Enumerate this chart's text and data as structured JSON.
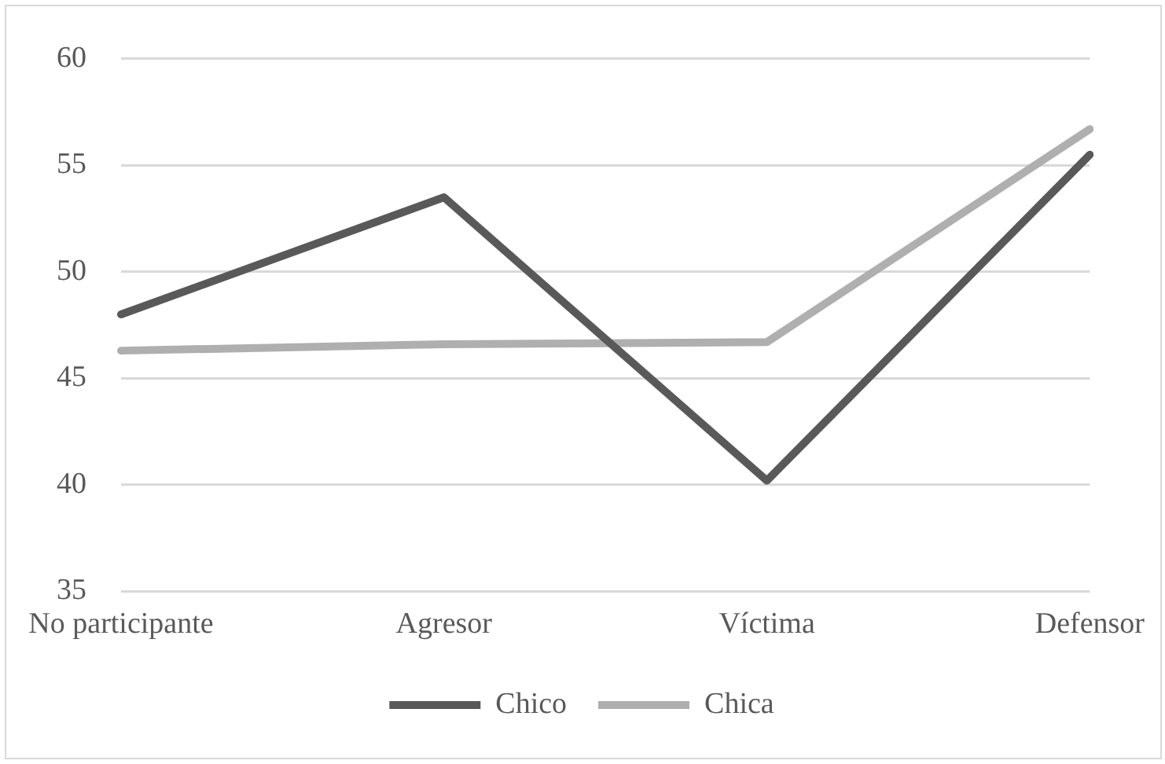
{
  "chart_data": {
    "type": "line",
    "categories": [
      "No participante",
      "Agresor",
      "Víctima",
      "Defensor"
    ],
    "series": [
      {
        "name": "Chico",
        "color": "#595959",
        "values": [
          48.0,
          53.5,
          40.2,
          55.5
        ]
      },
      {
        "name": "Chica",
        "color": "#afafaf",
        "values": [
          46.3,
          46.6,
          46.7,
          56.7
        ]
      }
    ],
    "ylim": [
      35,
      60
    ],
    "yticks": [
      35,
      40,
      45,
      50,
      55,
      60
    ],
    "grid": "y",
    "legend": "bottom",
    "marker": "none"
  }
}
